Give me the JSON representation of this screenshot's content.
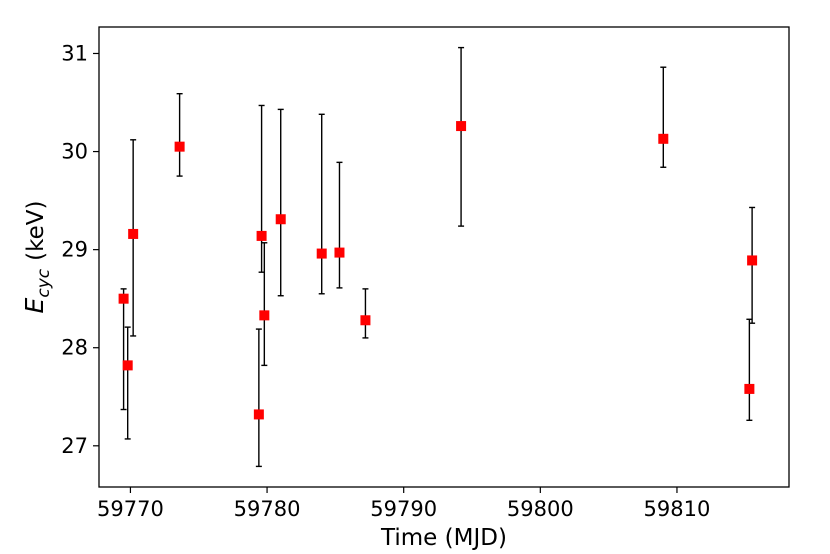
{
  "chart_data": {
    "type": "scatter",
    "xlabel": "Time (MJD)",
    "ylabel_main": "E",
    "ylabel_sub": "cyc",
    "ylabel_unit": "(keV)",
    "xlim": [
      59767.7,
      59818.2
    ],
    "ylim": [
      26.58,
      31.27
    ],
    "xticks": [
      59770,
      59780,
      59790,
      59800,
      59810
    ],
    "yticks": [
      27,
      28,
      29,
      30,
      31
    ],
    "grid": false,
    "marker": "square",
    "marker_color": "#ff0000",
    "errorbar_color": "#000000",
    "points": [
      {
        "x": 59769.5,
        "y": 28.5,
        "ylo": 27.37,
        "yhi": 28.6
      },
      {
        "x": 59769.8,
        "y": 27.82,
        "ylo": 27.07,
        "yhi": 28.21
      },
      {
        "x": 59770.2,
        "y": 29.16,
        "ylo": 28.12,
        "yhi": 30.12
      },
      {
        "x": 59773.6,
        "y": 30.05,
        "ylo": 29.75,
        "yhi": 30.59
      },
      {
        "x": 59779.4,
        "y": 27.32,
        "ylo": 26.79,
        "yhi": 28.19
      },
      {
        "x": 59779.6,
        "y": 29.14,
        "ylo": 28.77,
        "yhi": 30.47
      },
      {
        "x": 59779.8,
        "y": 28.33,
        "ylo": 27.82,
        "yhi": 29.07
      },
      {
        "x": 59781.0,
        "y": 29.31,
        "ylo": 28.53,
        "yhi": 30.43
      },
      {
        "x": 59784.0,
        "y": 28.96,
        "ylo": 28.55,
        "yhi": 30.38
      },
      {
        "x": 59785.3,
        "y": 28.97,
        "ylo": 28.61,
        "yhi": 29.89
      },
      {
        "x": 59787.2,
        "y": 28.28,
        "ylo": 28.1,
        "yhi": 28.6
      },
      {
        "x": 59794.2,
        "y": 30.26,
        "ylo": 29.24,
        "yhi": 31.06
      },
      {
        "x": 59809.0,
        "y": 30.13,
        "ylo": 29.84,
        "yhi": 30.86
      },
      {
        "x": 59815.3,
        "y": 27.58,
        "ylo": 27.26,
        "yhi": 28.29
      },
      {
        "x": 59815.5,
        "y": 28.89,
        "ylo": 28.25,
        "yhi": 29.43
      }
    ]
  }
}
